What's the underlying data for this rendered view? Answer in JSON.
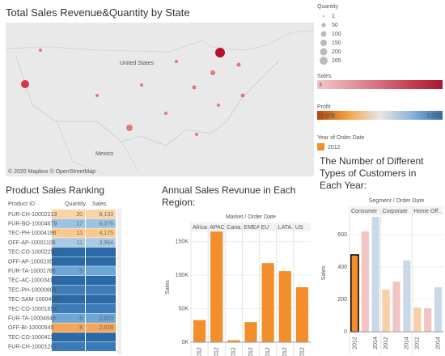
{
  "map": {
    "title": "Total Sales Revenue&Quantity by State",
    "labels": [
      "United States",
      "Mexico"
    ],
    "attribution": "© 2020 Mapbox © OpenStreetMap"
  },
  "quantity_legend": {
    "title": "Quantity",
    "values": [
      1,
      50,
      100,
      150,
      200,
      265
    ],
    "color": "#bbbbbb"
  },
  "sales_legend": {
    "title": "Sales",
    "min": 3,
    "max": {
      "value": 21212,
      "label": "21,212"
    },
    "colors": [
      "#f4c9c9",
      "#b5112c"
    ]
  },
  "profit_legend": {
    "title": "Profit",
    "min": {
      "value": -1806,
      "label": "-1,806"
    },
    "max": {
      "value": 1563,
      "label": "1,563"
    },
    "colors": [
      "#b8470b",
      "#f3a54a",
      "#e6e6e6",
      "#8fb4d8",
      "#2e6fa7"
    ]
  },
  "year_legend": {
    "title": "Year of Order Date",
    "items": [
      {
        "name": "2012",
        "color": "#f28e2b"
      }
    ]
  },
  "ranking": {
    "title": "Product Sales Ranking",
    "columns": [
      "Product ID",
      "Quantity",
      "Sales"
    ],
    "rows": [
      [
        "FUR-CH-10002213",
        20,
        "8,133"
      ],
      [
        "FUR-BO-10004679",
        17,
        "6,376"
      ],
      [
        "TEC-PH-10004196",
        11,
        "4,175"
      ],
      [
        "OFF-AP-10001106",
        11,
        "3,964"
      ],
      [
        "TEC-CO-10002259",
        null,
        null
      ],
      [
        "OFF-AP-10002351",
        null,
        null
      ],
      [
        "FUR-TA-10001786",
        5,
        null
      ],
      [
        "TEC-AC-10003415",
        null,
        null
      ],
      [
        "TEC-PH-10000800",
        null,
        null
      ],
      [
        "TEC-SAM-10004940",
        null,
        null
      ],
      [
        "TEC-CO-10001654",
        null,
        null
      ],
      [
        "FUR-TA-10004840",
        5,
        "2,823"
      ],
      [
        "OFF-BI-10000545",
        8,
        "2,816"
      ],
      [
        "TEC-CO-10004115",
        null,
        null
      ],
      [
        "FUR-CH-10001207",
        null,
        null
      ]
    ],
    "row_colors": [
      "#fbd3a5",
      "#9cc3e4",
      "#fbc98e",
      "#a9cbe6",
      "#2b6aa6",
      "#2b6aa6",
      "#6ea6d6",
      "#2b6aa6",
      "#3c7bb8",
      "#2b6aa6",
      "#3c7bb8",
      "#6ea6d6",
      "#f5a65b",
      "#2b6aa6",
      "#3c7bb8"
    ]
  },
  "chart_data": [
    {
      "type": "bar",
      "title": "Annual Sales Revunue in Each Region:",
      "header": "Market / Order Date",
      "categories": [
        "Africa",
        "APAC",
        "Cana..",
        "EMEA",
        "EU",
        "LATA..",
        "US"
      ],
      "x_labels": [
        "2012"
      ],
      "series": [
        {
          "color": "#f28e2b",
          "values": [
            33000,
            165000,
            3000,
            30000,
            118000,
            106000,
            82000
          ]
        }
      ],
      "y_label": "Sales",
      "ylim": [
        0,
        164000
      ],
      "yticks": [
        {
          "value": 0,
          "label": "0K"
        },
        {
          "value": 50000,
          "label": "50K"
        },
        {
          "value": 100000,
          "label": "100K"
        },
        {
          "value": 150000,
          "label": "150K"
        }
      ]
    },
    {
      "type": "bar",
      "title": "The Number of Different Types of Customers in Each Year:",
      "header": "Segment / Order Date",
      "categories": [
        "Consumer",
        "Corporate",
        "Home Off.."
      ],
      "x_labels": [
        "2012",
        null,
        "2014"
      ],
      "series": [
        {
          "color": "#f9cfa8",
          "values": [
            475,
            260,
            150
          ]
        },
        {
          "color": "#f2c4c4",
          "values": [
            620,
            310,
            145
          ]
        },
        {
          "color": "#c9d9e8",
          "values": [
            710,
            440,
            275
          ]
        }
      ],
      "highlight": {
        "category": 0,
        "series": 0,
        "color": "#f28e2b",
        "stroke": "#000000"
      },
      "y_label": "Sales",
      "ylim": [
        0,
        725
      ],
      "yticks": [
        0,
        200,
        400,
        600
      ]
    }
  ]
}
